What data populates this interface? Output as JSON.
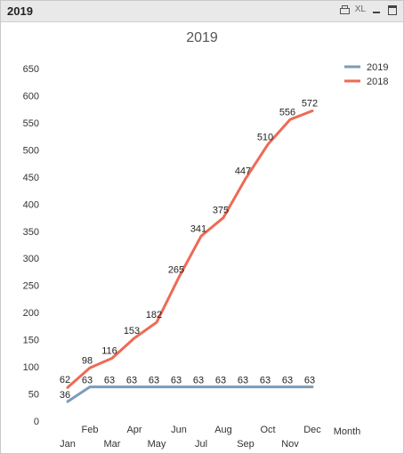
{
  "window": {
    "caption": "2019"
  },
  "toolbar": {
    "xl_label": "XL"
  },
  "colors": {
    "series_2019": "#7a9cbb",
    "series_2018": "#ee6a55"
  },
  "chart_data": {
    "type": "line",
    "title": "2019",
    "xlabel": "Month",
    "ylabel": "",
    "ylim": [
      0,
      650
    ],
    "yticks": [
      0,
      50,
      100,
      150,
      200,
      250,
      300,
      350,
      400,
      450,
      500,
      550,
      600,
      650
    ],
    "categories": [
      "Jan",
      "Feb",
      "Mar",
      "Apr",
      "May",
      "Jun",
      "Jul",
      "Aug",
      "Sep",
      "Oct",
      "Nov",
      "Dec"
    ],
    "legend_position": "top-right",
    "grid": false,
    "series": [
      {
        "name": "2019",
        "color": "#7a9cbb",
        "values": [
          36,
          63,
          63,
          63,
          63,
          63,
          63,
          63,
          63,
          63,
          63,
          63
        ]
      },
      {
        "name": "2018",
        "color": "#ee6a55",
        "values": [
          62,
          98,
          116,
          153,
          182,
          265,
          341,
          375,
          447,
          510,
          556,
          572
        ]
      }
    ]
  }
}
